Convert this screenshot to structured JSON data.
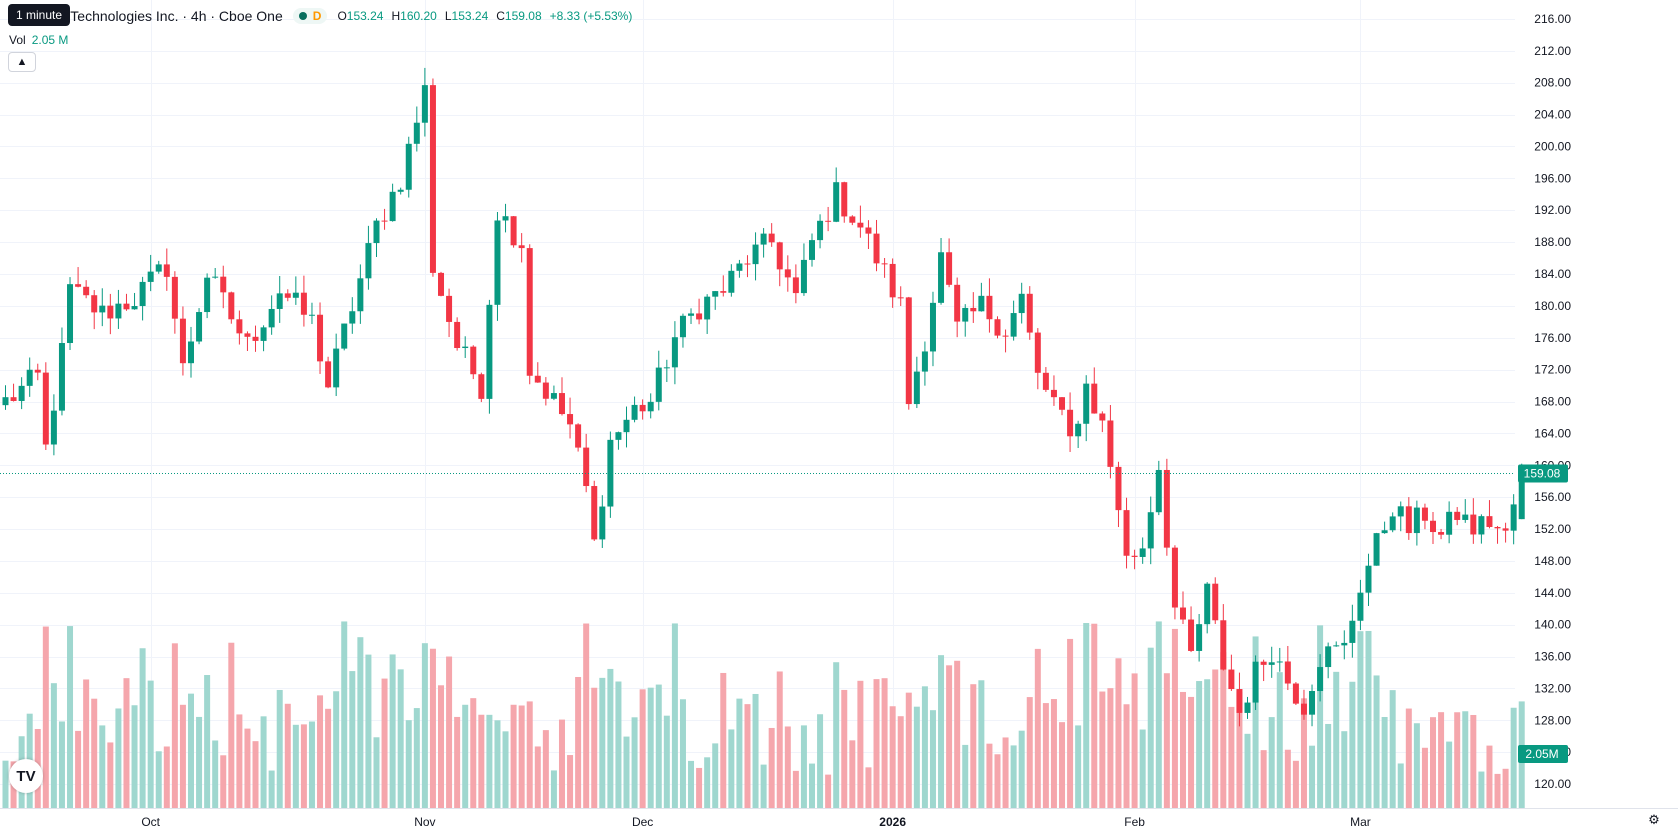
{
  "legend": {
    "title": "r Technologies Inc. · 4h · Cboe One",
    "flag": "D",
    "o_label": "O",
    "o": "153.24",
    "h_label": "H",
    "h": "160.20",
    "l_label": "L",
    "l": "153.24",
    "c_label": "C",
    "c": "159.08",
    "change": "+8.33 (+5.53%)"
  },
  "tooltip": "1 minute",
  "volume": {
    "label": "Vol",
    "value": "2.05 M"
  },
  "colors": {
    "up": "#089981",
    "down": "#f23645",
    "up_vol": "#9fd7cf",
    "down_vol": "#f5a6ac",
    "grid": "#f0f3fa"
  },
  "icons": {
    "logo": "tradingview-logo-icon",
    "settings": "gear-icon",
    "collapse": "chevron-up-icon"
  },
  "logo_text": "TV",
  "chart_data": {
    "type": "candlestick",
    "interval": "4h",
    "y_axis": {
      "min": 118,
      "max": 217,
      "ticks": [
        120,
        124,
        128,
        132,
        136,
        140,
        144,
        148,
        152,
        156,
        160,
        164,
        168,
        172,
        176,
        180,
        184,
        188,
        192,
        196,
        200,
        204,
        208,
        212,
        216
      ]
    },
    "x_labels": [
      {
        "label": "Oct",
        "bar": 18
      },
      {
        "label": "Nov",
        "bar": 52
      },
      {
        "label": "Dec",
        "bar": 79
      },
      {
        "label": "2026",
        "bar": 110,
        "bold": true
      },
      {
        "label": "Feb",
        "bar": 140
      },
      {
        "label": "Mar",
        "bar": 168
      }
    ],
    "last_price": "159.08",
    "last_volume_label": "2.05M",
    "anchors": [
      [
        0,
        168
      ],
      [
        4,
        171
      ],
      [
        5,
        162
      ],
      [
        7,
        174
      ],
      [
        8,
        182
      ],
      [
        12,
        179
      ],
      [
        16,
        181
      ],
      [
        20,
        185
      ],
      [
        22,
        172
      ],
      [
        25,
        184
      ],
      [
        30,
        175
      ],
      [
        34,
        182
      ],
      [
        38,
        178
      ],
      [
        40,
        170
      ],
      [
        43,
        180
      ],
      [
        46,
        190
      ],
      [
        49,
        196
      ],
      [
        52,
        207
      ],
      [
        53,
        185
      ],
      [
        56,
        175
      ],
      [
        59,
        170
      ],
      [
        61,
        192
      ],
      [
        64,
        188
      ],
      [
        65,
        172
      ],
      [
        68,
        168
      ],
      [
        70,
        165
      ],
      [
        72,
        157
      ],
      [
        73,
        150
      ],
      [
        75,
        163
      ],
      [
        78,
        167
      ],
      [
        80,
        168
      ],
      [
        83,
        176
      ],
      [
        86,
        180
      ],
      [
        89,
        182
      ],
      [
        92,
        186
      ],
      [
        95,
        188
      ],
      [
        98,
        181
      ],
      [
        100,
        188
      ],
      [
        103,
        194
      ],
      [
        106,
        190
      ],
      [
        108,
        186
      ],
      [
        111,
        180
      ],
      [
        112,
        168
      ],
      [
        114,
        176
      ],
      [
        116,
        186
      ],
      [
        118,
        177
      ],
      [
        121,
        180
      ],
      [
        124,
        177
      ],
      [
        126,
        181
      ],
      [
        128,
        171
      ],
      [
        130,
        168
      ],
      [
        132,
        163
      ],
      [
        134,
        170
      ],
      [
        136,
        165
      ],
      [
        138,
        155
      ],
      [
        139,
        148
      ],
      [
        141,
        150
      ],
      [
        143,
        160
      ],
      [
        145,
        142
      ],
      [
        147,
        136
      ],
      [
        149,
        144
      ],
      [
        151,
        135
      ],
      [
        153,
        129
      ],
      [
        155,
        134
      ],
      [
        157,
        137
      ],
      [
        159,
        133
      ],
      [
        161,
        130
      ],
      [
        163,
        136
      ],
      [
        166,
        137
      ],
      [
        168,
        145
      ],
      [
        170,
        150
      ],
      [
        172,
        155
      ],
      [
        174,
        152
      ],
      [
        176,
        154
      ],
      [
        178,
        151
      ],
      [
        180,
        154
      ],
      [
        182,
        152
      ],
      [
        184,
        153
      ],
      [
        186,
        151
      ],
      [
        188,
        159
      ]
    ],
    "bar_count": 189,
    "last_bar": {
      "open": 153.24,
      "high": 160.2,
      "low": 153.24,
      "close": 159.08,
      "volume": 2.05
    }
  }
}
